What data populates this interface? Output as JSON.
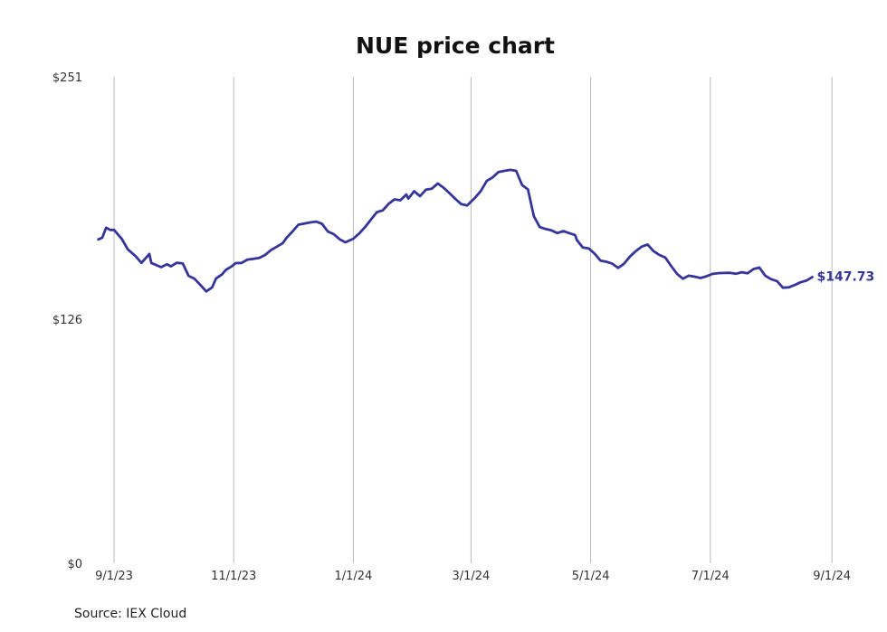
{
  "chart_data": {
    "type": "line",
    "title": "NUE price chart",
    "xlabel": "",
    "ylabel": "",
    "source": "Source: IEX Cloud",
    "ylim": [
      0,
      251
    ],
    "xlim": [
      "2023-08-20",
      "2024-09-06"
    ],
    "y_ticks": [
      {
        "value": 0,
        "label": "$0"
      },
      {
        "value": 126,
        "label": "$126"
      },
      {
        "value": 251,
        "label": "$251"
      }
    ],
    "x_ticks": [
      {
        "date": "2023-09-01",
        "label": "9/1/23"
      },
      {
        "date": "2023-11-01",
        "label": "11/1/23"
      },
      {
        "date": "2024-01-01",
        "label": "1/1/24"
      },
      {
        "date": "2024-03-01",
        "label": "3/1/24"
      },
      {
        "date": "2024-05-01",
        "label": "5/1/24"
      },
      {
        "date": "2024-07-01",
        "label": "7/1/24"
      },
      {
        "date": "2024-09-01",
        "label": "9/1/24"
      }
    ],
    "grid": "vertical",
    "line_color": "#35359a",
    "last_value_label": "$147.73",
    "series": [
      {
        "x": [
          "2023-08-24",
          "2023-08-26",
          "2023-08-28",
          "2023-08-30",
          "2023-09-01",
          "2023-09-05",
          "2023-09-08",
          "2023-09-12",
          "2023-09-15",
          "2023-09-19",
          "2023-09-20",
          "2023-09-22",
          "2023-09-25",
          "2023-09-28",
          "2023-09-30",
          "2023-10-03",
          "2023-10-06",
          "2023-10-09",
          "2023-10-12",
          "2023-10-15",
          "2023-10-18",
          "2023-10-21",
          "2023-10-23",
          "2023-10-26",
          "2023-10-28",
          "2023-10-31",
          "2023-11-02",
          "2023-11-05",
          "2023-11-08",
          "2023-11-11",
          "2023-11-14",
          "2023-11-17",
          "2023-11-20",
          "2023-11-23",
          "2023-11-26",
          "2023-11-28",
          "2023-12-01",
          "2023-12-04",
          "2023-12-07",
          "2023-12-10",
          "2023-12-13",
          "2023-12-16",
          "2023-12-19",
          "2023-12-22",
          "2023-12-25",
          "2023-12-28",
          "2024-01-01",
          "2024-01-04",
          "2024-01-07",
          "2024-01-10",
          "2024-01-13",
          "2024-01-16",
          "2024-01-19",
          "2024-01-22",
          "2024-01-25",
          "2024-01-28",
          "2024-01-29",
          "2024-02-01",
          "2024-02-04",
          "2024-02-07",
          "2024-02-10",
          "2024-02-13",
          "2024-02-16",
          "2024-02-19",
          "2024-02-22",
          "2024-02-25",
          "2024-02-28",
          "2024-03-03",
          "2024-03-06",
          "2024-03-09",
          "2024-03-12",
          "2024-03-15",
          "2024-03-18",
          "2024-03-21",
          "2024-03-24",
          "2024-03-27",
          "2024-03-30",
          "2024-04-02",
          "2024-04-05",
          "2024-04-08",
          "2024-04-11",
          "2024-04-14",
          "2024-04-17",
          "2024-04-20",
          "2024-04-23",
          "2024-04-24",
          "2024-04-27",
          "2024-04-30",
          "2024-05-03",
          "2024-05-06",
          "2024-05-09",
          "2024-05-12",
          "2024-05-15",
          "2024-05-18",
          "2024-05-21",
          "2024-05-24",
          "2024-05-27",
          "2024-05-30",
          "2024-06-02",
          "2024-06-05",
          "2024-06-08",
          "2024-06-11",
          "2024-06-14",
          "2024-06-17",
          "2024-06-20",
          "2024-06-23",
          "2024-06-26",
          "2024-06-29",
          "2024-07-02",
          "2024-07-05",
          "2024-07-08",
          "2024-07-11",
          "2024-07-14",
          "2024-07-17",
          "2024-07-20",
          "2024-07-23",
          "2024-07-26",
          "2024-07-29",
          "2024-08-01",
          "2024-08-04",
          "2024-08-07",
          "2024-08-10",
          "2024-08-13",
          "2024-08-16",
          "2024-08-19",
          "2024-08-22"
        ],
        "y": [
          167.1,
          168.0,
          173.2,
          172.0,
          172.0,
          167.3,
          162.0,
          158.5,
          155.0,
          159.6,
          155.0,
          154.1,
          152.8,
          154.3,
          153.2,
          155.1,
          154.7,
          148.3,
          146.8,
          143.6,
          140.3,
          142.4,
          147.0,
          149.0,
          151.4,
          153.2,
          154.9,
          155.0,
          156.7,
          157.1,
          157.6,
          159.1,
          161.6,
          163.4,
          165.2,
          168.0,
          171.2,
          174.7,
          175.3,
          175.9,
          176.3,
          175.2,
          171.2,
          169.8,
          167.2,
          165.6,
          167.5,
          170.2,
          173.5,
          177.4,
          181.2,
          182.1,
          185.5,
          187.8,
          187.3,
          190.3,
          188.2,
          192.0,
          189.4,
          192.8,
          193.3,
          196.0,
          193.8,
          191.0,
          188.0,
          185.3,
          184.6,
          188.6,
          192.1,
          197.3,
          199.1,
          201.9,
          202.5,
          203.0,
          202.5,
          195.2,
          192.9,
          179.1,
          173.5,
          172.5,
          171.8,
          170.4,
          171.4,
          170.4,
          169.4,
          166.8,
          162.9,
          162.5,
          159.8,
          156.2,
          155.6,
          154.6,
          152.4,
          154.6,
          158.3,
          161.1,
          163.4,
          164.5,
          161.1,
          159.1,
          157.8,
          153.4,
          149.4,
          146.8,
          148.4,
          147.9,
          147.2,
          148.1,
          149.3,
          149.7,
          149.8,
          149.9,
          149.4,
          150.2,
          149.6,
          151.8,
          152.6,
          148.4,
          146.6,
          145.6,
          142.2,
          142.4,
          143.6,
          145.0,
          145.9,
          147.73
        ]
      }
    ]
  }
}
